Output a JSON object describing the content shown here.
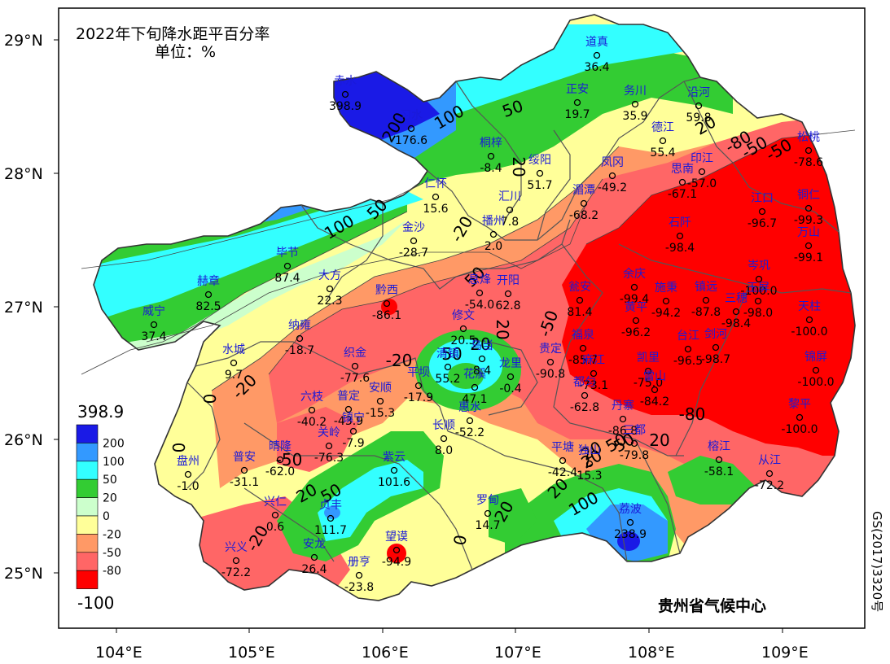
{
  "map": {
    "title": "2022年下旬降水距平百分率",
    "unit": "单位：%",
    "organization": "贵州省气候中心",
    "approval_number": "GS(2017)3320号",
    "lon_ticks": [
      "104°E",
      "105°E",
      "106°E",
      "107°E",
      "108°E",
      "109°E"
    ],
    "lat_ticks": [
      "29°N",
      "28°N",
      "27°N",
      "26°N",
      "25°N"
    ],
    "legend": {
      "max_label": "398.9",
      "min_label": "-100",
      "levels": [
        "200",
        "100",
        "50",
        "20",
        "0",
        "-20",
        "-50",
        "-80"
      ],
      "colors": [
        "#1a1ae6",
        "#3399ff",
        "#33ffff",
        "#33cc33",
        "#ccffcc",
        "#ffff99",
        "#ff9966",
        "#ff6666",
        "#ff0000"
      ]
    },
    "colors": {
      "c_gt200": "#1a1ae6",
      "c_100_200": "#3399ff",
      "c_50_100": "#33ffff",
      "c_20_50": "#33cc33",
      "c_0_20": "#ccffcc",
      "c_m20_0": "#ffff99",
      "c_m50_m20": "#ff9966",
      "c_m80_m50": "#ff6666",
      "c_lt_m80": "#ff0000"
    },
    "contour_labels": [
      "200",
      "100",
      "50",
      "20",
      "50",
      "100",
      "50",
      "20",
      "-20",
      "-50",
      "-80",
      "0",
      "-20",
      "-20",
      "-50",
      "50",
      "0",
      "20",
      "50",
      "20",
      "20",
      "-20",
      "50",
      "20",
      "-50",
      "20",
      "0",
      "20",
      "50",
      "20",
      "100",
      "20",
      "-80",
      "-50"
    ],
    "stations": [
      {
        "name": "赤水",
        "value": "398.9"
      },
      {
        "name": "习水",
        "value": "176.6"
      },
      {
        "name": "道真",
        "value": "36.4"
      },
      {
        "name": "正安",
        "value": "19.7"
      },
      {
        "name": "务川",
        "value": "35.9"
      },
      {
        "name": "沿河",
        "value": "59.8"
      },
      {
        "name": "德江",
        "value": "55.4"
      },
      {
        "name": "桐梓",
        "value": "-8.4"
      },
      {
        "name": "绥阳",
        "value": "51.7"
      },
      {
        "name": "凤冈",
        "value": "-49.2"
      },
      {
        "name": "印江",
        "value": "-57.0"
      },
      {
        "name": "思南",
        "value": "-67.1"
      },
      {
        "name": "松桃",
        "value": "-78.6"
      },
      {
        "name": "仁怀",
        "value": "15.6"
      },
      {
        "name": "汇川",
        "value": "7.8"
      },
      {
        "name": "湄潭",
        "value": "-68.2"
      },
      {
        "name": "江口",
        "value": "-96.7"
      },
      {
        "name": "铜仁",
        "value": "-99.3"
      },
      {
        "name": "金沙",
        "value": "-28.7"
      },
      {
        "name": "播州",
        "value": "2.0"
      },
      {
        "name": "石阡",
        "value": "-98.4"
      },
      {
        "name": "万山",
        "value": "-99.1"
      },
      {
        "name": "毕节",
        "value": "87.4"
      },
      {
        "name": "赫章",
        "value": "82.5"
      },
      {
        "name": "大方",
        "value": "22.3"
      },
      {
        "name": "黔西",
        "value": "-86.1"
      },
      {
        "name": "息烽",
        "value": "-54.0"
      },
      {
        "name": "开阳",
        "value": "62.8"
      },
      {
        "name": "瓮安",
        "value": "81.4"
      },
      {
        "name": "余庆",
        "value": "-99.4"
      },
      {
        "name": "施秉",
        "value": "-94.2"
      },
      {
        "name": "镇远",
        "value": "-87.8"
      },
      {
        "name": "岑巩",
        "value": "-100.0"
      },
      {
        "name": "玉屏",
        "value": "-98.0"
      },
      {
        "name": "威宁",
        "value": "37.4"
      },
      {
        "name": "纳雍",
        "value": "-18.7"
      },
      {
        "name": "修文",
        "value": "20.5"
      },
      {
        "name": "黄平",
        "value": "-96.2"
      },
      {
        "name": "三穗",
        "value": "-98.4"
      },
      {
        "name": "天柱",
        "value": "-100.0"
      },
      {
        "name": "水城",
        "value": "9.7"
      },
      {
        "name": "织金",
        "value": "-77.6"
      },
      {
        "name": "清镇",
        "value": "55.2"
      },
      {
        "name": "乌当",
        "value": "8.4"
      },
      {
        "name": "贵定",
        "value": "-90.8"
      },
      {
        "name": "福泉",
        "value": "-85.7"
      },
      {
        "name": "台江",
        "value": "-96.5"
      },
      {
        "name": "剑河",
        "value": "-98.7"
      },
      {
        "name": "龙里",
        "value": "-0.4"
      },
      {
        "name": "凯里",
        "value": "-75.0"
      },
      {
        "name": "锦屏",
        "value": "-100.0"
      },
      {
        "name": "平坝",
        "value": "-17.9"
      },
      {
        "name": "花溪",
        "value": "47.1"
      },
      {
        "name": "麻江",
        "value": "-73.1"
      },
      {
        "name": "雷山",
        "value": "-84.2"
      },
      {
        "name": "六枝",
        "value": "-40.2"
      },
      {
        "name": "普定",
        "value": "-43.9"
      },
      {
        "name": "安顺",
        "value": "-15.3"
      },
      {
        "name": "都匀",
        "value": "-62.8"
      },
      {
        "name": "丹寨",
        "value": "-86.8"
      },
      {
        "name": "黎平",
        "value": "-100.0"
      },
      {
        "name": "镇宁",
        "value": "-7.9"
      },
      {
        "name": "惠水",
        "value": "-52.2"
      },
      {
        "name": "长顺",
        "value": "8.0"
      },
      {
        "name": "关岭",
        "value": "-76.3"
      },
      {
        "name": "晴隆",
        "value": "-62.0"
      },
      {
        "name": "普安",
        "value": "-31.1"
      },
      {
        "name": "三都",
        "value": "-79.8"
      },
      {
        "name": "榕江",
        "value": "-58.1"
      },
      {
        "name": "紫云",
        "value": "101.6"
      },
      {
        "name": "平塘",
        "value": "-42.4"
      },
      {
        "name": "独山",
        "value": "15.3"
      },
      {
        "name": "从江",
        "value": "-72.2"
      },
      {
        "name": "盘州",
        "value": "-1.0"
      },
      {
        "name": "兴仁",
        "value": "0.6"
      },
      {
        "name": "贞丰",
        "value": "111.7"
      },
      {
        "name": "罗甸",
        "value": "14.7"
      },
      {
        "name": "荔波",
        "value": "238.9"
      },
      {
        "name": "望谟",
        "value": "-94.9"
      },
      {
        "name": "安龙",
        "value": "26.4"
      },
      {
        "name": "兴义",
        "value": "-72.2"
      },
      {
        "name": "册亨",
        "value": "-23.8"
      }
    ]
  }
}
